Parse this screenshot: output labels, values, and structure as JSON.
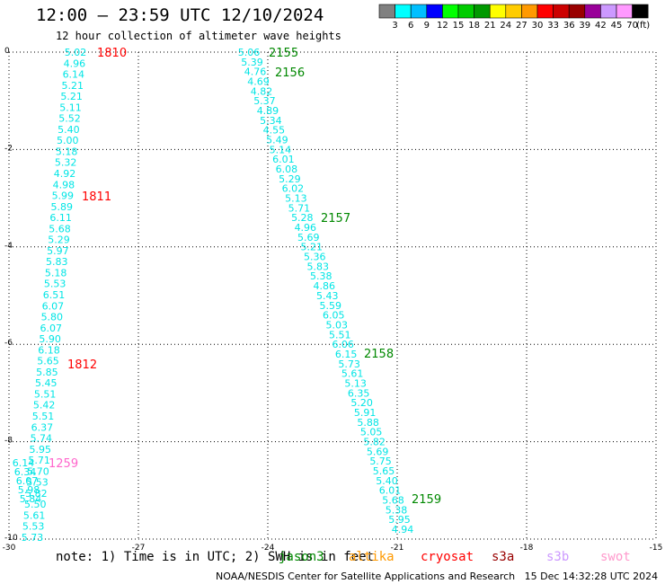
{
  "title": "12:00 — 23:59 UTC 12/10/2024",
  "subtitle": "12 hour collection of altimeter wave heights",
  "colorbar": {
    "labels": [
      "3",
      "6",
      "9",
      "12",
      "15",
      "18",
      "21",
      "24",
      "27",
      "30",
      "33",
      "36",
      "39",
      "42",
      "45",
      "70"
    ],
    "unit": "(ft)",
    "colors": [
      "#808080",
      "#00ffff",
      "#00bfff",
      "#0000ff",
      "#00ff00",
      "#00cc00",
      "#009900",
      "#ffff00",
      "#ffcc00",
      "#ff9900",
      "#ff0000",
      "#cc0000",
      "#990000",
      "#990099",
      "#cc99ff",
      "#ff99ff",
      "#000000"
    ]
  },
  "map": {
    "lon_range": [
      -30,
      -15
    ],
    "lat_range": [
      -10,
      0
    ],
    "x_ticks": [
      "-30",
      "-27",
      "-24",
      "-21",
      "-18",
      "-15"
    ],
    "y_ticks": [
      "0",
      "-2",
      "-4",
      "-6",
      "-8",
      "-10"
    ],
    "grid": "dotted",
    "value_color": "#00e5e5"
  },
  "tracks": [
    {
      "id": "left",
      "values": [
        "5.02",
        "4.96",
        "6.14",
        "5.21",
        "5.21",
        "5.11",
        "5.52",
        "5.40",
        "5.00",
        "5.18",
        "5.32",
        "4.92",
        "4.98",
        "5.99",
        "5.89",
        "6.11",
        "5.68",
        "5.29",
        "5.97",
        "5.83",
        "5.18",
        "5.53",
        "6.51",
        "6.07",
        "5.80",
        "6.07",
        "5.90",
        "6.18",
        "5.65",
        "5.85",
        "5.45",
        "5.51",
        "5.42",
        "5.51",
        "6.37",
        "5.74",
        "5.95",
        "5.71",
        "5.70",
        "5.53",
        "5.82",
        "5.50",
        "5.61",
        "5.53",
        "5.73"
      ]
    },
    {
      "id": "middle",
      "values": [
        "5.06",
        "5.39",
        "4.76",
        "4.69",
        "4.82",
        "5.37",
        "4.89",
        "5.34",
        "4.55",
        "5.49",
        "5.14",
        "6.01",
        "6.08",
        "5.29",
        "6.02",
        "5.13",
        "5.71",
        "5.28",
        "4.96",
        "5.69",
        "5.21",
        "5.36",
        "5.83",
        "5.38",
        "4.86",
        "5.43",
        "5.59",
        "6.05",
        "5.03",
        "5.51",
        "6.06",
        "6.15",
        "5.73",
        "5.61",
        "5.13",
        "6.35",
        "5.20",
        "5.91",
        "5.88",
        "5.05",
        "5.82",
        "5.69",
        "5.75",
        "5.65",
        "5.40",
        "6.01",
        "5.68",
        "5.38",
        "5.95",
        "4.94"
      ]
    },
    {
      "id": "cluster",
      "values": [
        "6.14",
        "6.34",
        "6.07",
        "5.98",
        "5.84"
      ]
    }
  ],
  "time_labels": [
    {
      "text": "1810",
      "color": "#ff0000"
    },
    {
      "text": "1811",
      "color": "#ff0000"
    },
    {
      "text": "1812",
      "color": "#ff0000"
    },
    {
      "text": "2155",
      "color": "#008800"
    },
    {
      "text": "2156",
      "color": "#008800"
    },
    {
      "text": "2157",
      "color": "#008800"
    },
    {
      "text": "2158",
      "color": "#008800"
    },
    {
      "text": "2159",
      "color": "#008800"
    },
    {
      "text": "1259",
      "color": "#ff66cc"
    }
  ],
  "note": "note: 1) Time is in UTC; 2) SWH is in feet",
  "satellites": [
    {
      "name": "jason3",
      "color": "#008800"
    },
    {
      "name": "altika",
      "color": "#ff9900"
    },
    {
      "name": "cryosat",
      "color": "#ff0000"
    },
    {
      "name": "s3a",
      "color": "#990000"
    },
    {
      "name": "s3b",
      "color": "#cc99ff"
    },
    {
      "name": "swot",
      "color": "#ff99cc"
    }
  ],
  "footer": "NOAA/NESDIS Center for Satellite Applications and Research   15 Dec 14:32:28 UTC 2024"
}
